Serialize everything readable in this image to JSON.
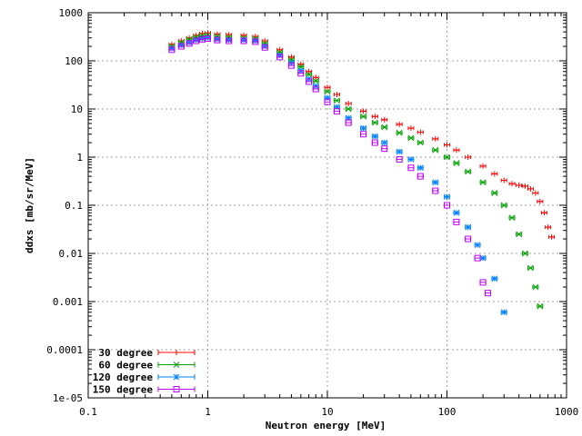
{
  "chart_data": {
    "type": "scatter",
    "title": "",
    "xlabel": "Neutron energy [MeV]",
    "ylabel": "ddxs [mb/sr/MeV]",
    "xscale": "log",
    "yscale": "log",
    "xlim": [
      0.1,
      1000
    ],
    "ylim": [
      1e-05,
      1000
    ],
    "grid": true,
    "legend_position": "bottom-left",
    "x_ticks": [
      "0.1",
      "1",
      "10",
      "100",
      "1000"
    ],
    "y_ticks": [
      "1e-05",
      "0.0001",
      "0.001",
      "0.01",
      "0.1",
      "1",
      "10",
      "100",
      "1000"
    ],
    "series": [
      {
        "name": "30 degree",
        "color": "#ff0000",
        "marker": "plus",
        "points": [
          [
            0.5,
            220
          ],
          [
            0.6,
            260
          ],
          [
            0.7,
            300
          ],
          [
            0.8,
            340
          ],
          [
            0.9,
            370
          ],
          [
            1.0,
            380
          ],
          [
            1.2,
            360
          ],
          [
            1.5,
            350
          ],
          [
            2.0,
            340
          ],
          [
            2.5,
            320
          ],
          [
            3.0,
            260
          ],
          [
            4.0,
            170
          ],
          [
            5.0,
            120
          ],
          [
            6.0,
            85
          ],
          [
            7.0,
            60
          ],
          [
            8.0,
            45
          ],
          [
            10.0,
            28
          ],
          [
            12.0,
            20
          ],
          [
            15.0,
            13
          ],
          [
            20.0,
            9
          ],
          [
            25.0,
            7
          ],
          [
            30.0,
            6
          ],
          [
            40.0,
            4.8
          ],
          [
            50.0,
            4.0
          ],
          [
            60.0,
            3.3
          ],
          [
            80.0,
            2.4
          ],
          [
            100.0,
            1.8
          ],
          [
            120.0,
            1.4
          ],
          [
            150.0,
            1.0
          ],
          [
            200.0,
            0.65
          ],
          [
            250.0,
            0.45
          ],
          [
            300.0,
            0.33
          ],
          [
            350.0,
            0.28
          ],
          [
            400.0,
            0.26
          ],
          [
            450.0,
            0.25
          ],
          [
            500.0,
            0.22
          ],
          [
            550.0,
            0.18
          ],
          [
            600.0,
            0.12
          ],
          [
            650.0,
            0.07
          ],
          [
            700.0,
            0.035
          ],
          [
            750.0,
            0.022
          ]
        ]
      },
      {
        "name": "60 degree",
        "color": "#00a000",
        "marker": "cross",
        "points": [
          [
            0.5,
            200
          ],
          [
            0.6,
            240
          ],
          [
            0.7,
            280
          ],
          [
            0.8,
            310
          ],
          [
            0.9,
            330
          ],
          [
            1.0,
            340
          ],
          [
            1.2,
            320
          ],
          [
            1.5,
            310
          ],
          [
            2.0,
            300
          ],
          [
            2.5,
            290
          ],
          [
            3.0,
            230
          ],
          [
            4.0,
            150
          ],
          [
            5.0,
            105
          ],
          [
            6.0,
            75
          ],
          [
            7.0,
            52
          ],
          [
            8.0,
            38
          ],
          [
            10.0,
            23
          ],
          [
            12.0,
            15
          ],
          [
            15.0,
            10
          ],
          [
            20.0,
            7
          ],
          [
            25.0,
            5.2
          ],
          [
            30.0,
            4.2
          ],
          [
            40.0,
            3.2
          ],
          [
            50.0,
            2.5
          ],
          [
            60.0,
            2.0
          ],
          [
            80.0,
            1.4
          ],
          [
            100.0,
            1.0
          ],
          [
            120.0,
            0.75
          ],
          [
            150.0,
            0.5
          ],
          [
            200.0,
            0.3
          ],
          [
            250.0,
            0.18
          ],
          [
            300.0,
            0.1
          ],
          [
            350.0,
            0.055
          ],
          [
            400.0,
            0.025
          ],
          [
            450.0,
            0.01
          ],
          [
            500.0,
            0.005
          ],
          [
            550.0,
            0.002
          ],
          [
            600.0,
            0.0008
          ]
        ]
      },
      {
        "name": "120 degree",
        "color": "#0080ff",
        "marker": "star",
        "points": [
          [
            0.5,
            180
          ],
          [
            0.6,
            210
          ],
          [
            0.7,
            240
          ],
          [
            0.8,
            270
          ],
          [
            0.9,
            290
          ],
          [
            1.0,
            300
          ],
          [
            1.2,
            280
          ],
          [
            1.5,
            270
          ],
          [
            2.0,
            270
          ],
          [
            2.5,
            260
          ],
          [
            3.0,
            200
          ],
          [
            4.0,
            130
          ],
          [
            5.0,
            90
          ],
          [
            6.0,
            62
          ],
          [
            7.0,
            42
          ],
          [
            8.0,
            30
          ],
          [
            10.0,
            17
          ],
          [
            12.0,
            11
          ],
          [
            15.0,
            6.5
          ],
          [
            20.0,
            4.0
          ],
          [
            25.0,
            2.7
          ],
          [
            30.0,
            2.0
          ],
          [
            40.0,
            1.3
          ],
          [
            50.0,
            0.9
          ],
          [
            60.0,
            0.6
          ],
          [
            80.0,
            0.3
          ],
          [
            100.0,
            0.15
          ],
          [
            120.0,
            0.07
          ],
          [
            150.0,
            0.035
          ],
          [
            180.0,
            0.015
          ],
          [
            200.0,
            0.008
          ],
          [
            250.0,
            0.003
          ],
          [
            300.0,
            0.0006
          ]
        ]
      },
      {
        "name": "150 degree",
        "color": "#c000ff",
        "marker": "square",
        "points": [
          [
            0.5,
            170
          ],
          [
            0.6,
            200
          ],
          [
            0.7,
            230
          ],
          [
            0.8,
            260
          ],
          [
            0.9,
            280
          ],
          [
            1.0,
            290
          ],
          [
            1.2,
            270
          ],
          [
            1.5,
            260
          ],
          [
            2.0,
            260
          ],
          [
            2.5,
            250
          ],
          [
            3.0,
            190
          ],
          [
            4.0,
            120
          ],
          [
            5.0,
            80
          ],
          [
            6.0,
            55
          ],
          [
            7.0,
            37
          ],
          [
            8.0,
            26
          ],
          [
            10.0,
            14
          ],
          [
            12.0,
            9
          ],
          [
            15.0,
            5.2
          ],
          [
            20.0,
            3.0
          ],
          [
            25.0,
            2.0
          ],
          [
            30.0,
            1.5
          ],
          [
            40.0,
            0.9
          ],
          [
            50.0,
            0.6
          ],
          [
            60.0,
            0.4
          ],
          [
            80.0,
            0.2
          ],
          [
            100.0,
            0.1
          ],
          [
            120.0,
            0.045
          ],
          [
            150.0,
            0.02
          ],
          [
            180.0,
            0.008
          ],
          [
            200.0,
            0.0025
          ],
          [
            220.0,
            0.0015
          ]
        ]
      }
    ]
  }
}
